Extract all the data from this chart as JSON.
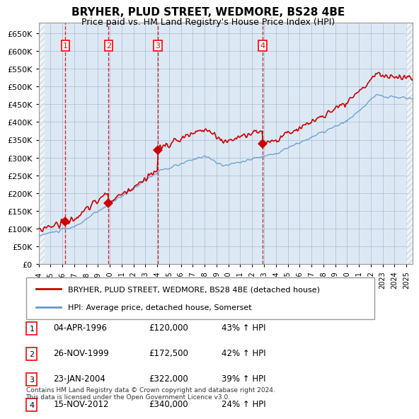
{
  "title": "BRYHER, PLUD STREET, WEDMORE, BS28 4BE",
  "subtitle": "Price paid vs. HM Land Registry's House Price Index (HPI)",
  "footnote": "Contains HM Land Registry data © Crown copyright and database right 2024.\nThis data is licensed under the Open Government Licence v3.0.",
  "legend_line1": "BRYHER, PLUD STREET, WEDMORE, BS28 4BE (detached house)",
  "legend_line2": "HPI: Average price, detached house, Somerset",
  "transactions": [
    {
      "num": 1,
      "date": "04-APR-1996",
      "price": 120000,
      "pct": "43%",
      "year": 1996.25
    },
    {
      "num": 2,
      "date": "26-NOV-1999",
      "price": 172500,
      "pct": "42%",
      "year": 1999.9
    },
    {
      "num": 3,
      "date": "23-JAN-2004",
      "price": 322000,
      "pct": "39%",
      "year": 2004.05
    },
    {
      "num": 4,
      "date": "15-NOV-2012",
      "price": 340000,
      "pct": "24%",
      "year": 2012.88
    }
  ],
  "hpi_color": "#6699cc",
  "price_color": "#cc0000",
  "dashed_color": "#cc0000",
  "bg_color": "#dce9f5",
  "plot_bg": "#ffffff",
  "grid_color": "#aabbcc",
  "hatch_color": "#aaaaaa",
  "ylim": [
    0,
    680000
  ],
  "yticks": [
    0,
    50000,
    100000,
    150000,
    200000,
    250000,
    300000,
    350000,
    400000,
    450000,
    500000,
    550000,
    600000,
    650000
  ],
  "xmin": 1994.0,
  "xmax": 2025.5
}
